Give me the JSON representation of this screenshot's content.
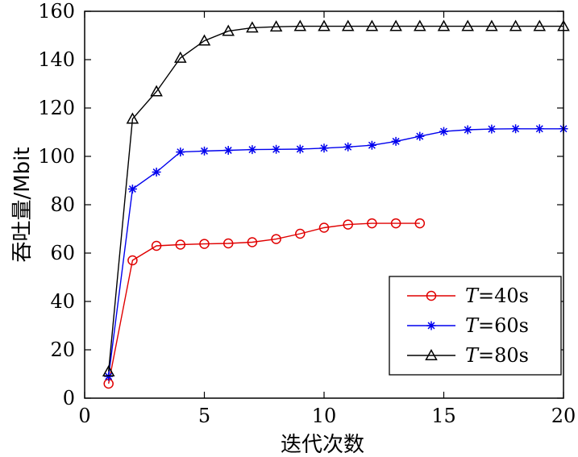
{
  "chart_data": {
    "type": "line",
    "title": "",
    "xlabel": "迭代次数",
    "ylabel": "吞吐量/Mbit",
    "xlim": [
      0,
      20
    ],
    "ylim": [
      0,
      160
    ],
    "xticks": [
      0,
      5,
      10,
      15,
      20
    ],
    "yticks": [
      0,
      20,
      40,
      60,
      80,
      100,
      120,
      140,
      160
    ],
    "grid": false,
    "legend_position": "bottom-right",
    "series": [
      {
        "name": "T=40s",
        "legend_var": "T",
        "legend_rest": "=40s",
        "color": "#e00000",
        "marker": "circle",
        "x": [
          1,
          2,
          3,
          4,
          5,
          6,
          7,
          8,
          9,
          10,
          11,
          12,
          13,
          14
        ],
        "values": [
          6,
          57,
          63,
          63.5,
          63.8,
          64,
          64.5,
          65.8,
          68,
          70.5,
          71.8,
          72.3,
          72.3,
          72.3
        ]
      },
      {
        "name": "T=60s",
        "legend_var": "T",
        "legend_rest": "=60s",
        "color": "#0000ee",
        "marker": "asterisk",
        "x": [
          1,
          2,
          3,
          4,
          5,
          6,
          7,
          8,
          9,
          10,
          11,
          12,
          13,
          14,
          15,
          16,
          17,
          18,
          19,
          20
        ],
        "values": [
          9,
          86.5,
          93.5,
          101.8,
          102.2,
          102.5,
          102.8,
          102.9,
          103,
          103.4,
          103.9,
          104.6,
          106.2,
          108.3,
          110.3,
          111,
          111.3,
          111.4,
          111.4,
          111.4
        ]
      },
      {
        "name": "T=80s",
        "legend_var": "T",
        "legend_rest": "=80s",
        "color": "#000000",
        "marker": "triangle",
        "x": [
          1,
          2,
          3,
          4,
          5,
          6,
          7,
          8,
          9,
          10,
          11,
          12,
          13,
          14,
          15,
          16,
          17,
          18,
          19,
          20
        ],
        "values": [
          11,
          115.5,
          126.8,
          140.7,
          147.8,
          151.8,
          153.2,
          153.6,
          153.8,
          153.8,
          153.8,
          153.8,
          153.8,
          153.8,
          153.8,
          153.8,
          153.8,
          153.8,
          153.8,
          153.8
        ]
      }
    ]
  }
}
